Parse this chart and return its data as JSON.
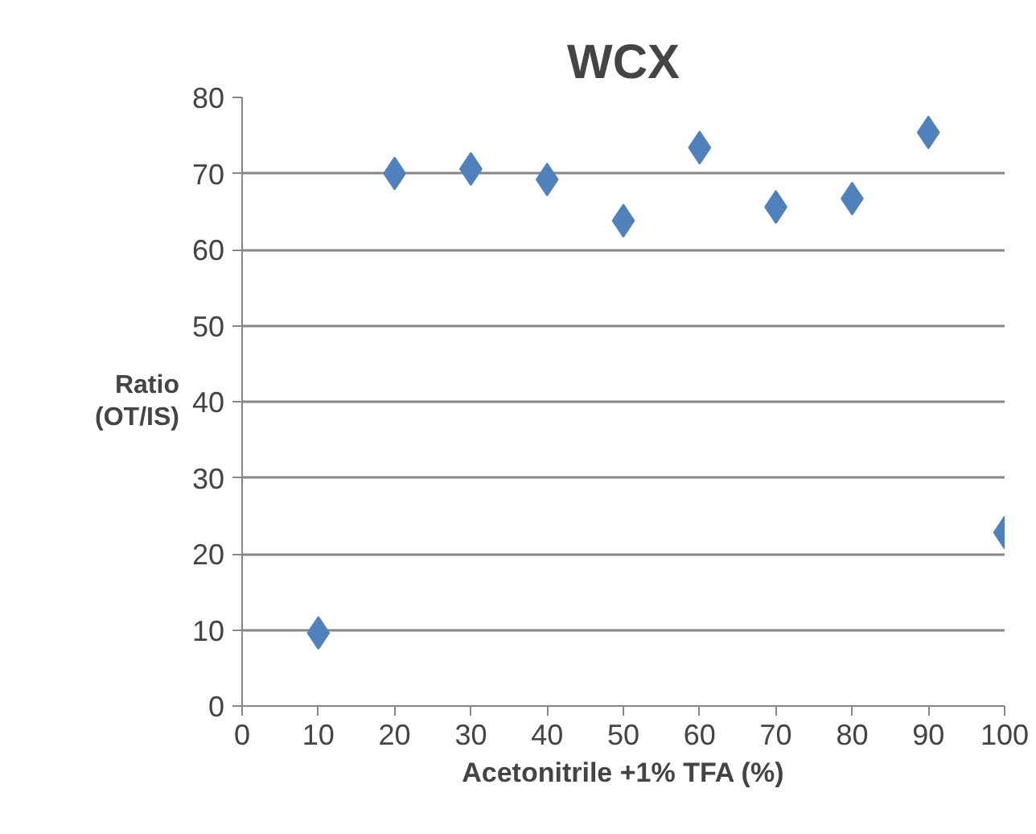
{
  "chart_data": {
    "type": "scatter",
    "title": "WCX",
    "xlabel": "Acetonitrile +1% TFA (%)",
    "ylabel": "Ratio\n(OT/IS)",
    "x": [
      10,
      20,
      30,
      40,
      50,
      60,
      70,
      80,
      90,
      100
    ],
    "series": [
      {
        "color": "#4f81bd",
        "values": [
          9.6,
          70.0,
          70.6,
          69.2,
          63.8,
          73.4,
          65.6,
          66.7,
          75.4,
          22.8
        ]
      }
    ],
    "xlim": [
      0,
      100
    ],
    "ylim": [
      0,
      80
    ],
    "xticks": [
      0,
      10,
      20,
      30,
      40,
      50,
      60,
      70,
      80,
      90,
      100
    ],
    "yticks": [
      0,
      10,
      20,
      30,
      40,
      50,
      60,
      70,
      80
    ],
    "grid": "y",
    "marker": "diamond"
  }
}
